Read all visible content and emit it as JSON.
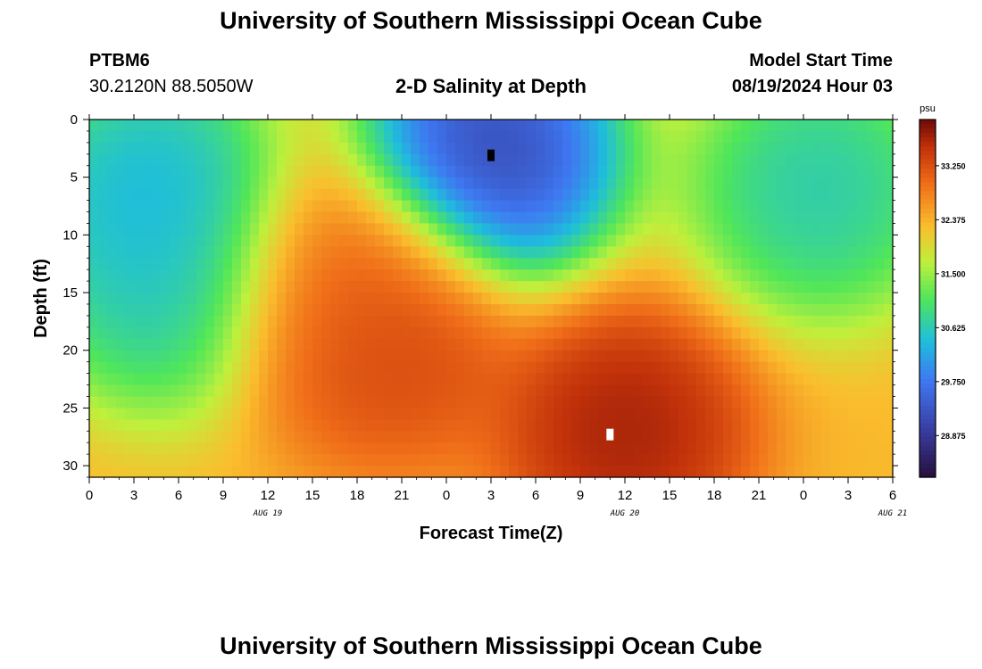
{
  "header": {
    "title_top": "University of Southern Mississippi Ocean Cube",
    "title_bottom": "University of Southern Mississippi Ocean Cube",
    "station_id": "PTBM6",
    "station_coords": "30.2120N  88.5050W",
    "model_start_label": "Model Start Time",
    "model_start_value": "08/19/2024 Hour 03"
  },
  "chart_data": {
    "type": "heatmap",
    "title": "2-D Salinity at Depth",
    "xlabel": "Forecast Time(Z)",
    "ylabel": "Depth (ft)",
    "colorbar_unit": "psu",
    "colorbar_ticks": [
      "33.250",
      "32.375",
      "31.500",
      "30.625",
      "29.750",
      "28.875"
    ],
    "colorbar_range": [
      28.2,
      34.0
    ],
    "x_tick_labels": [
      "0",
      "3",
      "6",
      "9",
      "12",
      "15",
      "18",
      "21",
      "0",
      "3",
      "6",
      "9",
      "12",
      "15",
      "18",
      "21",
      "0",
      "3",
      "6"
    ],
    "date_labels": [
      {
        "text": "AUG 19",
        "hour": 12
      },
      {
        "text": "AUG 20",
        "hour": 36
      },
      {
        "text": "AUG 21",
        "hour": 54
      }
    ],
    "x_range_hours": [
      0,
      54
    ],
    "y_ticks": [
      0,
      5,
      10,
      15,
      20,
      25,
      30
    ],
    "ylim": [
      0,
      31
    ],
    "salinity_features": [
      {
        "hour": 4,
        "depth": 6,
        "psu": 30.0,
        "desc": "fresh"
      },
      {
        "hour": 5,
        "depth": 14,
        "psu": 30.3,
        "desc": "fresh"
      },
      {
        "hour": 17,
        "depth": 15,
        "psu": 33.0,
        "desc": "salty"
      },
      {
        "hour": 20,
        "depth": 19,
        "psu": 33.6,
        "desc": "salty"
      },
      {
        "hour": 27,
        "depth": 3,
        "psu": 28.5,
        "desc": "fresh"
      },
      {
        "hour": 36,
        "depth": 27,
        "psu": 34.0,
        "desc": "salty"
      },
      {
        "hour": 49,
        "depth": 6,
        "psu": 30.3,
        "desc": "fresh"
      }
    ]
  }
}
